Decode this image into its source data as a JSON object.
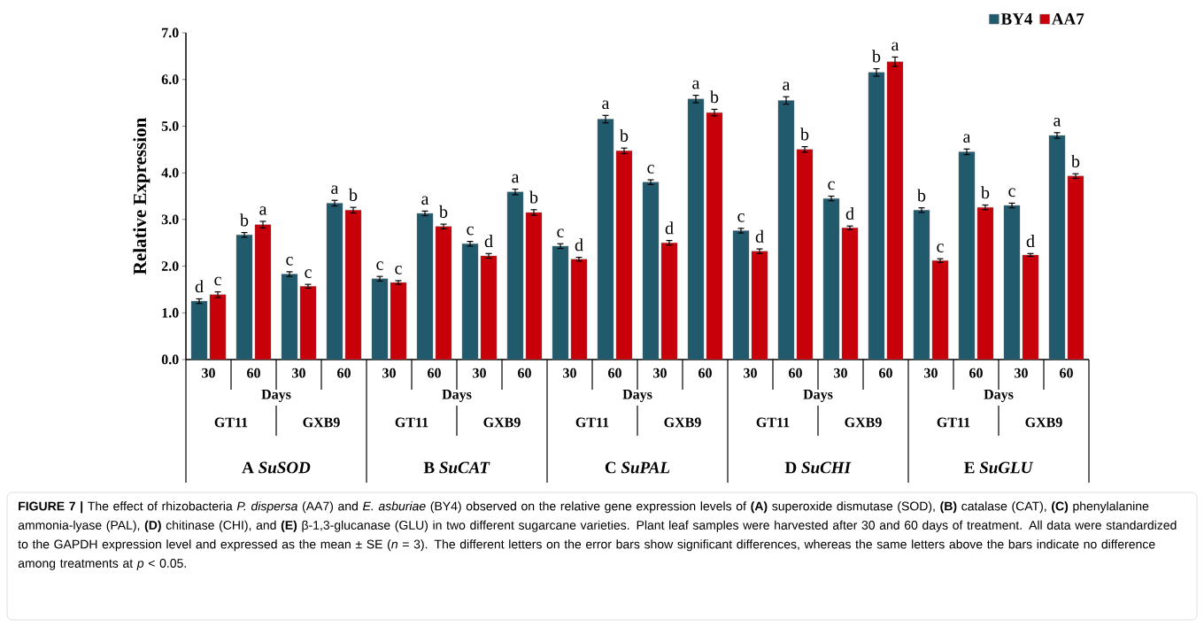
{
  "chart_data": {
    "type": "bar",
    "ylabel": "Relative Expression",
    "categories": [
      "30",
      "60",
      "30",
      "60",
      "30",
      "60",
      "30",
      "60",
      "30",
      "60",
      "30",
      "60",
      "30",
      "60",
      "30",
      "60",
      "30",
      "60",
      "30",
      "60"
    ],
    "ylim": [
      0,
      7
    ],
    "yticks": [
      {
        "value": 0,
        "label": "0.0"
      },
      {
        "value": 1,
        "label": "1.0"
      },
      {
        "value": 2,
        "label": "2.0"
      },
      {
        "value": 3,
        "label": "3.0"
      },
      {
        "value": 4,
        "label": "4.0"
      },
      {
        "value": 5,
        "label": "5.0"
      },
      {
        "value": 6,
        "label": "6.0"
      },
      {
        "value": 7,
        "label": "7.0"
      }
    ],
    "legend": "top right",
    "series": [
      {
        "name": "BY4",
        "color": "#215a6c",
        "values": [
          1.25,
          2.67,
          1.83,
          3.35,
          1.73,
          3.13,
          2.48,
          3.59,
          2.43,
          5.15,
          3.8,
          5.58,
          2.76,
          5.55,
          3.45,
          6.15,
          3.2,
          4.45,
          3.3,
          4.8
        ],
        "errors": [
          0.05,
          0.05,
          0.05,
          0.06,
          0.05,
          0.05,
          0.05,
          0.06,
          0.05,
          0.08,
          0.05,
          0.08,
          0.05,
          0.08,
          0.05,
          0.08,
          0.05,
          0.06,
          0.05,
          0.06
        ],
        "value_labels": [
          "d",
          "b",
          "c",
          "a",
          "c",
          "a",
          "c",
          "a",
          "c",
          "a",
          "c",
          "a",
          "c",
          "a",
          "c",
          "b",
          "b",
          "a",
          "c",
          "a"
        ]
      },
      {
        "name": "AA7",
        "color": "#c8000a",
        "values": [
          1.39,
          2.89,
          1.57,
          3.2,
          1.65,
          2.85,
          2.22,
          3.15,
          2.15,
          4.47,
          2.5,
          5.29,
          2.32,
          4.5,
          2.82,
          6.38,
          2.12,
          3.26,
          2.24,
          3.93
        ],
        "errors": [
          0.06,
          0.07,
          0.04,
          0.06,
          0.04,
          0.05,
          0.05,
          0.06,
          0.04,
          0.06,
          0.05,
          0.07,
          0.05,
          0.06,
          0.04,
          0.1,
          0.04,
          0.05,
          0.03,
          0.05
        ],
        "value_labels": [
          "c",
          "a",
          "c",
          "b",
          "c",
          "b",
          "d",
          "b",
          "d",
          "b",
          "d",
          "b",
          "d",
          "b",
          "d",
          "a",
          "c",
          "b",
          "d",
          "b"
        ]
      }
    ],
    "annotations": [
      "Days",
      "Days",
      "Days",
      "Days",
      "Days",
      "GT11",
      "GXB9",
      "GT11",
      "GXB9",
      "GT11",
      "GXB9",
      "GT11",
      "GXB9",
      "GT11",
      "GXB9",
      "A *SuSOD*",
      "B *SuCAT*",
      "C *SuPAL*",
      "D *SuCHI*",
      "E *SuGLU*",
      "**FIGURE 7 |** The effect of rhizobacteria *P. dispersa* (AA7) and *E. asburiae* (BY4) observed on the relative gene expression levels of **(A)** superoxide dismutase (SOD), **(B)** catalase (CAT), **(C)** phenylalanine ammonia-lyase (PAL), **(D)** chitinase (CHI), and **(E)** β-1,3-glucanase (GLU) in two different sugarcane varieties. Plant leaf samples were harvested after 30 and 60 days of treatment. All data were standardized to the GAPDH expression level and expressed as the mean ± SE (*n* = 3). The different letters on the error bars show significant differences, whereas the same letters above the bars indicate no difference among treatments at *p* < 0.05."
    ]
  }
}
